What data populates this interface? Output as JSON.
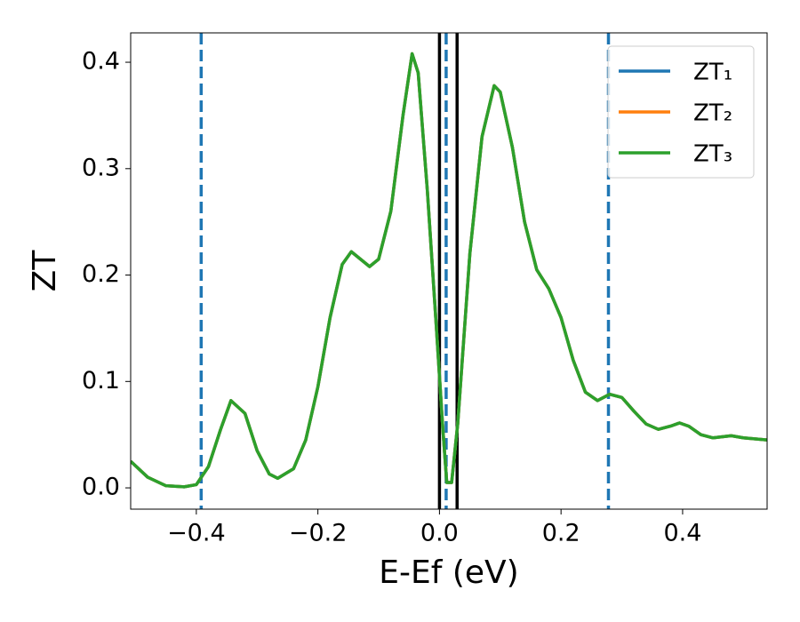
{
  "chart_data": {
    "type": "line",
    "xlabel": "E-Ef (eV)",
    "ylabel": "ZT",
    "x": [
      -0.508,
      -0.48,
      -0.45,
      -0.42,
      -0.4,
      -0.38,
      -0.36,
      -0.343,
      -0.32,
      -0.3,
      -0.28,
      -0.266,
      -0.24,
      -0.22,
      -0.2,
      -0.18,
      -0.16,
      -0.145,
      -0.13,
      -0.115,
      -0.1,
      -0.08,
      -0.06,
      -0.045,
      -0.035,
      -0.02,
      -0.005,
      0.005,
      0.012,
      0.02,
      0.03,
      0.05,
      0.07,
      0.09,
      0.1,
      0.12,
      0.14,
      0.16,
      0.18,
      0.2,
      0.22,
      0.24,
      0.26,
      0.28,
      0.3,
      0.32,
      0.34,
      0.36,
      0.38,
      0.395,
      0.41,
      0.43,
      0.45,
      0.48,
      0.5,
      0.539
    ],
    "series": [
      {
        "name": "ZT₁",
        "color": "#1f77b4",
        "values": [
          0.025,
          0.01,
          0.002,
          0.001,
          0.003,
          0.02,
          0.055,
          0.082,
          0.07,
          0.035,
          0.013,
          0.009,
          0.018,
          0.045,
          0.095,
          0.16,
          0.21,
          0.222,
          0.215,
          0.208,
          0.215,
          0.26,
          0.35,
          0.408,
          0.39,
          0.28,
          0.15,
          0.06,
          0.005,
          0.005,
          0.06,
          0.22,
          0.33,
          0.378,
          0.372,
          0.32,
          0.25,
          0.205,
          0.187,
          0.16,
          0.12,
          0.09,
          0.082,
          0.088,
          0.085,
          0.072,
          0.06,
          0.055,
          0.058,
          0.061,
          0.058,
          0.05,
          0.047,
          0.049,
          0.047,
          0.045
        ]
      },
      {
        "name": "ZT₂",
        "color": "#ff7f0e",
        "values": [
          0.025,
          0.01,
          0.002,
          0.001,
          0.003,
          0.02,
          0.055,
          0.082,
          0.07,
          0.035,
          0.013,
          0.009,
          0.018,
          0.045,
          0.095,
          0.16,
          0.21,
          0.222,
          0.215,
          0.208,
          0.215,
          0.26,
          0.35,
          0.408,
          0.39,
          0.28,
          0.15,
          0.06,
          0.005,
          0.005,
          0.06,
          0.22,
          0.33,
          0.378,
          0.372,
          0.32,
          0.25,
          0.205,
          0.187,
          0.16,
          0.12,
          0.09,
          0.082,
          0.088,
          0.085,
          0.072,
          0.06,
          0.055,
          0.058,
          0.061,
          0.058,
          0.05,
          0.047,
          0.049,
          0.047,
          0.045
        ]
      },
      {
        "name": "ZT₃",
        "color": "#2ca02c",
        "values": [
          0.025,
          0.01,
          0.002,
          0.001,
          0.003,
          0.02,
          0.055,
          0.082,
          0.07,
          0.035,
          0.013,
          0.009,
          0.018,
          0.045,
          0.095,
          0.16,
          0.21,
          0.222,
          0.215,
          0.208,
          0.215,
          0.26,
          0.35,
          0.408,
          0.39,
          0.28,
          0.15,
          0.06,
          0.005,
          0.005,
          0.06,
          0.22,
          0.33,
          0.378,
          0.372,
          0.32,
          0.25,
          0.205,
          0.187,
          0.16,
          0.12,
          0.09,
          0.082,
          0.088,
          0.085,
          0.072,
          0.06,
          0.055,
          0.058,
          0.061,
          0.058,
          0.05,
          0.047,
          0.049,
          0.047,
          0.045
        ]
      }
    ],
    "vlines": [
      {
        "x": -0.392,
        "color": "#1f77b4",
        "style": "dashed"
      },
      {
        "x": 0.011,
        "color": "#1f77b4",
        "style": "dashed"
      },
      {
        "x": 0.278,
        "color": "#1f77b4",
        "style": "dashed"
      },
      {
        "x": 0.0,
        "color": "#000000",
        "style": "solid"
      },
      {
        "x": 0.029,
        "color": "#000000",
        "style": "solid"
      }
    ],
    "xlim": [
      -0.508,
      0.539
    ],
    "ylim": [
      -0.02,
      0.4276
    ],
    "xticks": [
      {
        "value": -0.4,
        "label": "−0.4"
      },
      {
        "value": -0.2,
        "label": "−0.2"
      },
      {
        "value": 0.0,
        "label": "0.0"
      },
      0.2,
      0.4
    ],
    "yticks": [
      {
        "value": 0.0,
        "label": "0.0"
      },
      0.1,
      0.2,
      0.3,
      0.4
    ],
    "legend": "upper-right",
    "grid": false
  }
}
